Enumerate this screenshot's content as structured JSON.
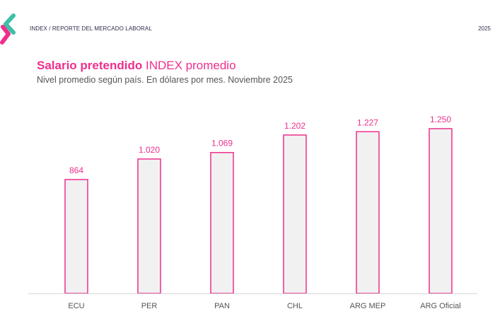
{
  "header": {
    "breadcrumb": "INDEX / REPORTE DEL MERCADO LABORAL",
    "year": "2025"
  },
  "logo": {
    "icon": "index-chevron-logo",
    "colors": [
      "#3dbfa8",
      "#ee2f8c"
    ]
  },
  "chart_data": {
    "type": "bar",
    "title_bold": "Salario pretendido",
    "title_rest": "INDEX promedio",
    "subtitle": "Nivel promedio según país. En dólares por mes. Noviembre 2025",
    "categories": [
      "ECU",
      "PER",
      "PAN",
      "CHL",
      "ARG MEP",
      "ARG Oficial"
    ],
    "values": [
      864,
      1020,
      1069,
      1202,
      1227,
      1250
    ],
    "data_labels": [
      "864",
      "1.020",
      "1.069",
      "1.202",
      "1.227",
      "1.250"
    ],
    "ylim": [
      0,
      1250
    ],
    "grid": false,
    "colors": {
      "bar_stroke": "#ee2f8c",
      "bar_fill": "#f1f1f1",
      "label": "#ee2f8c",
      "axis": "#d8d8d8"
    }
  }
}
